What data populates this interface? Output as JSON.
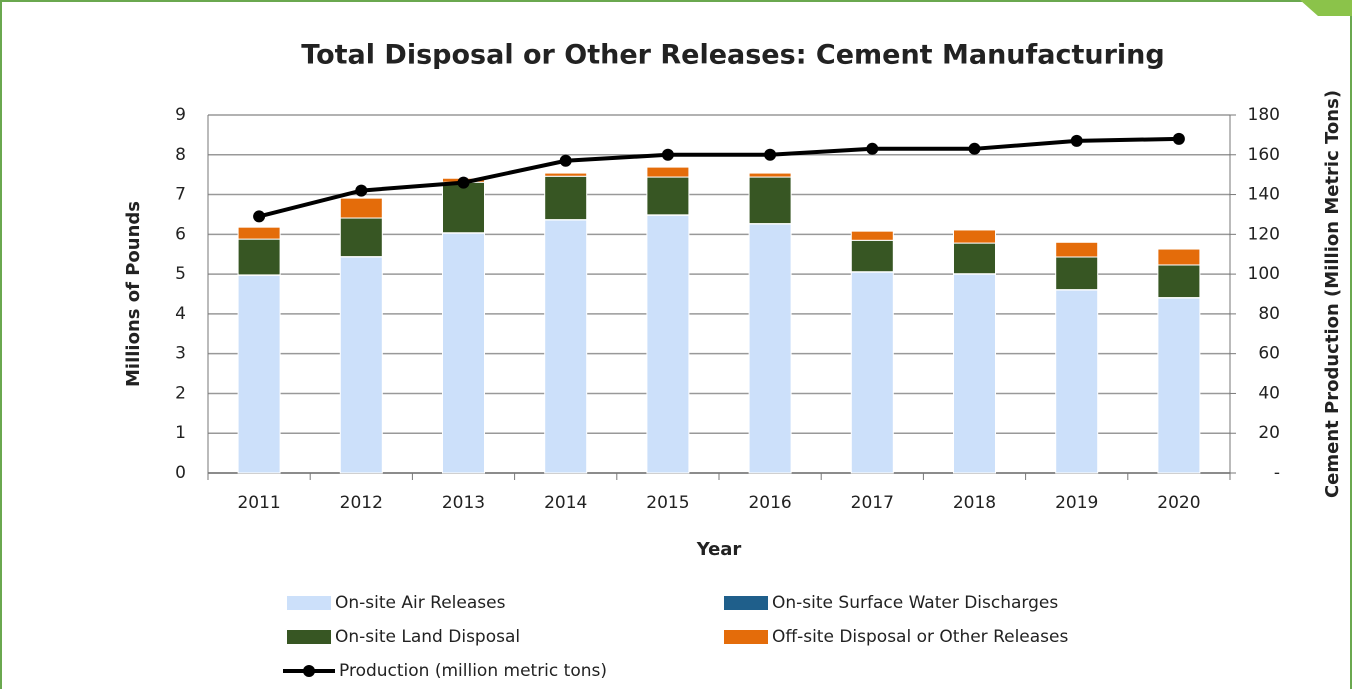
{
  "chart_data": {
    "type": "bar",
    "stacked": true,
    "title": "Total Disposal or Other Releases: Cement Manufacturing",
    "x_label": "Year",
    "y_label": "Millions of Pounds",
    "y2_label": "Cement Production (Million Metric Tons)",
    "categories": [
      "2011",
      "2012",
      "2013",
      "2014",
      "2015",
      "2016",
      "2017",
      "2018",
      "2019",
      "2020"
    ],
    "series": [
      {
        "name": "On-site Air Releases",
        "color": "#cce0fa",
        "values": [
          4.97,
          5.43,
          6.03,
          6.36,
          6.48,
          6.26,
          5.05,
          5.0,
          4.6,
          4.4
        ]
      },
      {
        "name": "On-site Surface Water Discharges",
        "color": "#1f5f8b",
        "values": [
          0.01,
          0.01,
          0.01,
          0.01,
          0.01,
          0.01,
          0.01,
          0.01,
          0.01,
          0.01
        ]
      },
      {
        "name": "On-site Land Disposal",
        "color": "#375623",
        "values": [
          0.9,
          0.97,
          1.27,
          1.09,
          0.95,
          1.17,
          0.79,
          0.77,
          0.82,
          0.82
        ]
      },
      {
        "name": "Off-site Disposal or Other Releases",
        "color": "#e46c0a",
        "values": [
          0.3,
          0.5,
          0.1,
          0.08,
          0.25,
          0.1,
          0.23,
          0.33,
          0.37,
          0.4
        ]
      },
      {
        "name": "Production (million metric tons)",
        "color": "#000000",
        "type": "line",
        "axis": "y2",
        "values": [
          129,
          142,
          146,
          157,
          160,
          160,
          163,
          163,
          167,
          168
        ]
      }
    ],
    "ylim": [
      0,
      9
    ],
    "yticks": [
      0,
      1,
      2,
      3,
      4,
      5,
      6,
      7,
      8,
      9
    ],
    "y2lim": [
      0,
      180
    ],
    "y2ticks": [
      {
        "value": 0,
        "label": "-"
      },
      20,
      40,
      60,
      80,
      100,
      120,
      140,
      160,
      180
    ],
    "grid": true
  }
}
